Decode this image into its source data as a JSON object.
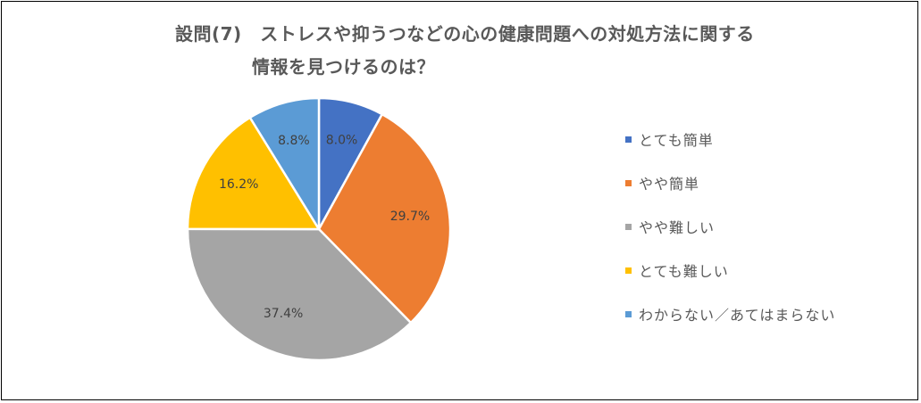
{
  "chart_data": {
    "type": "pie",
    "title_line1": "設問(7)　ストレスや抑うつなどの心の健康問題への対処方法に関する",
    "title_line2": "情報を見つけるのは？",
    "legend_position": "right",
    "slices": [
      {
        "label": "とても簡単",
        "value": 8.0,
        "value_label": "8.0%",
        "color": "#4472C4"
      },
      {
        "label": "やや簡単",
        "value": 29.7,
        "value_label": "29.7%",
        "color": "#ED7D31"
      },
      {
        "label": "やや難しい",
        "value": 37.4,
        "value_label": "37.4%",
        "color": "#A5A5A5"
      },
      {
        "label": "とても難しい",
        "value": 16.2,
        "value_label": "16.2%",
        "color": "#FFC000"
      },
      {
        "label": "わからない／あてはまらない",
        "value": 8.8,
        "value_label": "8.8%",
        "color": "#5B9BD5"
      }
    ]
  }
}
